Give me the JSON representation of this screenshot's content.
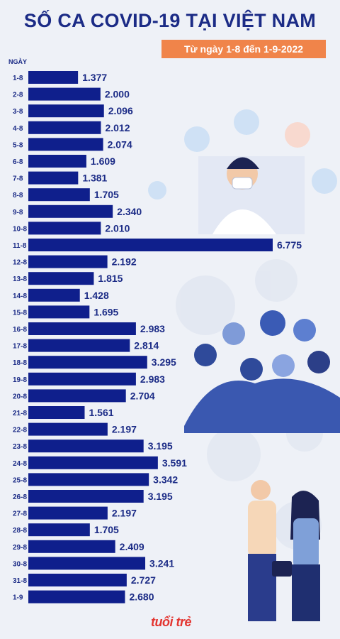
{
  "header": {
    "title": "SỐ CA COVID-19 TẠI VIỆT NAM",
    "subtitle": "Từ ngày 1-8 đến 1-9-2022"
  },
  "brand": {
    "logo_text": "tuổi trẻ"
  },
  "colors": {
    "bar": "#0f1f8c",
    "accent": "#f0844a",
    "text": "#1b2b86"
  },
  "chart_data": {
    "type": "bar",
    "orientation": "horizontal",
    "title": "SỐ CA COVID-19 TẠI VIỆT NAM",
    "subtitle": "Từ ngày 1-8 đến 1-9-2022",
    "ylabel": "NGÀY",
    "xlabel": "",
    "categories": [
      "1-8",
      "2-8",
      "3-8",
      "4-8",
      "5-8",
      "6-8",
      "7-8",
      "8-8",
      "9-8",
      "10-8",
      "11-8",
      "12-8",
      "13-8",
      "14-8",
      "15-8",
      "16-8",
      "17-8",
      "18-8",
      "19-8",
      "20-8",
      "21-8",
      "22-8",
      "23-8",
      "24-8",
      "25-8",
      "26-8",
      "27-8",
      "28-8",
      "29-8",
      "30-8",
      "31-8",
      "1-9"
    ],
    "values": [
      1377,
      2000,
      2096,
      2012,
      2074,
      1609,
      1381,
      1705,
      2340,
      2010,
      6775,
      2192,
      1815,
      1428,
      1695,
      2983,
      2814,
      3295,
      2983,
      2704,
      1561,
      2197,
      3195,
      3591,
      3342,
      3195,
      2197,
      1705,
      2409,
      3241,
      2727,
      2680
    ],
    "value_labels": [
      "1.377",
      "2.000",
      "2.096",
      "2.012",
      "2.074",
      "1.609",
      "1.381",
      "1.705",
      "2.340",
      "2.010",
      "6.775",
      "2.192",
      "1.815",
      "1.428",
      "1.695",
      "2.983",
      "2.814",
      "3.295",
      "2.983",
      "2.704",
      "1.561",
      "2.197",
      "3.195",
      "3.591",
      "3.342",
      "3.195",
      "2.197",
      "1.705",
      "2.409",
      "3.241",
      "2.727",
      "2.680"
    ],
    "xlim": [
      0,
      6775
    ],
    "grid": false,
    "legend": "none"
  }
}
